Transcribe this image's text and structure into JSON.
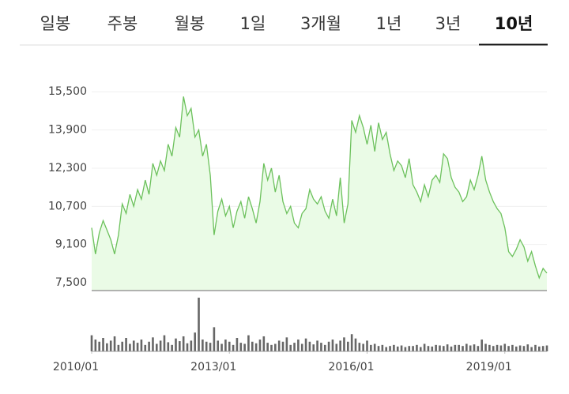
{
  "tabs": [
    "일봉",
    "주봉",
    "월봉",
    "1일",
    "3개월",
    "1년",
    "3년",
    "10년"
  ],
  "selected_tab": 7,
  "chart_data": {
    "type": "line",
    "color": "#6cc15c",
    "fill": "#eafbe6",
    "grid": true,
    "x": [
      "2010/01",
      "2010/02",
      "2010/03",
      "2010/04",
      "2010/05",
      "2010/06",
      "2010/07",
      "2010/08",
      "2010/09",
      "2010/10",
      "2010/11",
      "2010/12",
      "2011/01",
      "2011/02",
      "2011/03",
      "2011/04",
      "2011/05",
      "2011/06",
      "2011/07",
      "2011/08",
      "2011/09",
      "2011/10",
      "2011/11",
      "2011/12",
      "2012/01",
      "2012/02",
      "2012/03",
      "2012/04",
      "2012/05",
      "2012/06",
      "2012/07",
      "2012/08",
      "2012/09",
      "2012/10",
      "2012/11",
      "2012/12",
      "2013/01",
      "2013/02",
      "2013/03",
      "2013/04",
      "2013/05",
      "2013/06",
      "2013/07",
      "2013/08",
      "2013/09",
      "2013/10",
      "2013/11",
      "2013/12",
      "2014/01",
      "2014/02",
      "2014/03",
      "2014/04",
      "2014/05",
      "2014/06",
      "2014/07",
      "2014/08",
      "2014/09",
      "2014/10",
      "2014/11",
      "2014/12",
      "2015/01",
      "2015/02",
      "2015/03",
      "2015/04",
      "2015/05",
      "2015/06",
      "2015/07",
      "2015/08",
      "2015/09",
      "2015/10",
      "2015/11",
      "2015/12",
      "2016/01",
      "2016/02",
      "2016/03",
      "2016/04",
      "2016/05",
      "2016/06",
      "2016/07",
      "2016/08",
      "2016/09",
      "2016/10",
      "2016/11",
      "2016/12",
      "2017/01",
      "2017/02",
      "2017/03",
      "2017/04",
      "2017/05",
      "2017/06",
      "2017/07",
      "2017/08",
      "2017/09",
      "2017/10",
      "2017/11",
      "2017/12",
      "2018/01",
      "2018/02",
      "2018/03",
      "2018/04",
      "2018/05",
      "2018/06",
      "2018/07",
      "2018/08",
      "2018/09",
      "2018/10",
      "2018/11",
      "2018/12",
      "2019/01",
      "2019/02",
      "2019/03",
      "2019/04",
      "2019/05",
      "2019/06",
      "2019/07",
      "2019/08",
      "2019/09",
      "2019/10",
      "2019/11",
      "2019/12"
    ],
    "values": [
      9800,
      8700,
      9600,
      10100,
      9700,
      9300,
      8700,
      9500,
      10800,
      10400,
      11200,
      10700,
      11400,
      11000,
      11800,
      11200,
      12500,
      12000,
      12600,
      12200,
      13300,
      12800,
      14000,
      13600,
      15300,
      14500,
      14800,
      13600,
      13900,
      12800,
      13300,
      12000,
      9500,
      10500,
      11000,
      10300,
      10700,
      9800,
      10500,
      10900,
      10200,
      11100,
      10600,
      10000,
      10900,
      12500,
      11800,
      12300,
      11300,
      12000,
      10900,
      10400,
      10700,
      10000,
      9800,
      10400,
      10600,
      11400,
      11000,
      10800,
      11100,
      10500,
      10200,
      11000,
      10300,
      11900,
      10000,
      10800,
      14300,
      13800,
      14500,
      14000,
      13300,
      14100,
      13000,
      14200,
      13500,
      13800,
      12900,
      12200,
      12600,
      12400,
      11900,
      12700,
      11600,
      11300,
      10900,
      11600,
      11100,
      11800,
      12000,
      11700,
      12900,
      12700,
      11900,
      11500,
      11300,
      10900,
      11100,
      11800,
      11400,
      12000,
      12800,
      11800,
      11300,
      10900,
      10600,
      10400,
      9800,
      8800,
      8600,
      8900,
      9300,
      9000,
      8400,
      8800,
      8200,
      7700,
      8100,
      7900
    ],
    "ylim": [
      7170,
      16170
    ],
    "yticks": [
      {
        "value": 7500,
        "label": "7,500"
      },
      {
        "value": 9100,
        "label": "9,100"
      },
      {
        "value": 10700,
        "label": "10,700"
      },
      {
        "value": 12300,
        "label": "12,300"
      },
      {
        "value": 13900,
        "label": "13,900"
      },
      {
        "value": 15500,
        "label": "15,500"
      }
    ],
    "xticks": [
      "2010/01",
      "2013/01",
      "2016/01",
      "2019/01"
    ],
    "volume": {
      "color": "#666666",
      "values": [
        30,
        22,
        18,
        25,
        15,
        20,
        28,
        12,
        18,
        25,
        14,
        20,
        16,
        22,
        12,
        18,
        26,
        14,
        20,
        30,
        17,
        12,
        24,
        19,
        28,
        15,
        20,
        35,
        100,
        22,
        18,
        16,
        45,
        20,
        14,
        22,
        18,
        12,
        25,
        16,
        14,
        30,
        18,
        15,
        22,
        28,
        16,
        12,
        14,
        20,
        18,
        26,
        12,
        16,
        22,
        14,
        24,
        18,
        13,
        20,
        16,
        12,
        18,
        22,
        14,
        20,
        26,
        18,
        32,
        24,
        16,
        14,
        20,
        12,
        14,
        10,
        12,
        8,
        10,
        12,
        9,
        11,
        8,
        10,
        10,
        12,
        8,
        14,
        10,
        9,
        12,
        11,
        10,
        13,
        9,
        12,
        12,
        10,
        14,
        11,
        13,
        10,
        22,
        14,
        12,
        10,
        12,
        11,
        14,
        10,
        12,
        9,
        11,
        10,
        13,
        8,
        12,
        9,
        10,
        11
      ]
    }
  }
}
